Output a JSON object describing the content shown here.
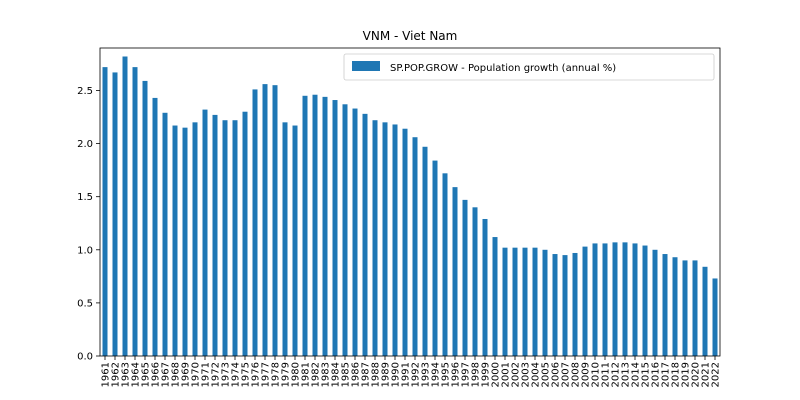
{
  "chart_data": {
    "type": "bar",
    "title": "VNM - Viet Nam",
    "xlabel": "",
    "ylabel": "",
    "ylim": [
      0,
      2.9
    ],
    "yticks": [
      "0.0",
      "0.5",
      "1.0",
      "1.5",
      "2.0",
      "2.5"
    ],
    "ytick_values": [
      0,
      0.5,
      1.0,
      1.5,
      2.0,
      2.5
    ],
    "grid": false,
    "legend_position": "top-right",
    "bar_color": "#1f77b4",
    "categories": [
      "1961",
      "1962",
      "1963",
      "1964",
      "1965",
      "1966",
      "1967",
      "1968",
      "1969",
      "1970",
      "1971",
      "1972",
      "1973",
      "1974",
      "1975",
      "1976",
      "1977",
      "1978",
      "1979",
      "1980",
      "1981",
      "1982",
      "1983",
      "1984",
      "1985",
      "1986",
      "1987",
      "1988",
      "1989",
      "1990",
      "1991",
      "1992",
      "1993",
      "1994",
      "1995",
      "1996",
      "1997",
      "1998",
      "1999",
      "2000",
      "2001",
      "2002",
      "2003",
      "2004",
      "2005",
      "2006",
      "2007",
      "2008",
      "2009",
      "2010",
      "2011",
      "2012",
      "2013",
      "2014",
      "2015",
      "2016",
      "2017",
      "2018",
      "2019",
      "2020",
      "2021",
      "2022"
    ],
    "series": [
      {
        "name": "SP.POP.GROW - Population growth (annual %)",
        "values": [
          2.72,
          2.67,
          2.82,
          2.72,
          2.59,
          2.43,
          2.29,
          2.17,
          2.15,
          2.2,
          2.32,
          2.27,
          2.22,
          2.22,
          2.3,
          2.51,
          2.56,
          2.55,
          2.2,
          2.17,
          2.45,
          2.46,
          2.44,
          2.41,
          2.37,
          2.33,
          2.28,
          2.22,
          2.2,
          2.18,
          2.14,
          2.06,
          1.97,
          1.84,
          1.72,
          1.59,
          1.47,
          1.4,
          1.29,
          1.12,
          1.02,
          1.02,
          1.02,
          1.02,
          1.0,
          0.96,
          0.95,
          0.97,
          1.03,
          1.06,
          1.06,
          1.07,
          1.07,
          1.06,
          1.04,
          1.0,
          0.96,
          0.93,
          0.9,
          0.9,
          0.84,
          0.73
        ]
      }
    ]
  }
}
